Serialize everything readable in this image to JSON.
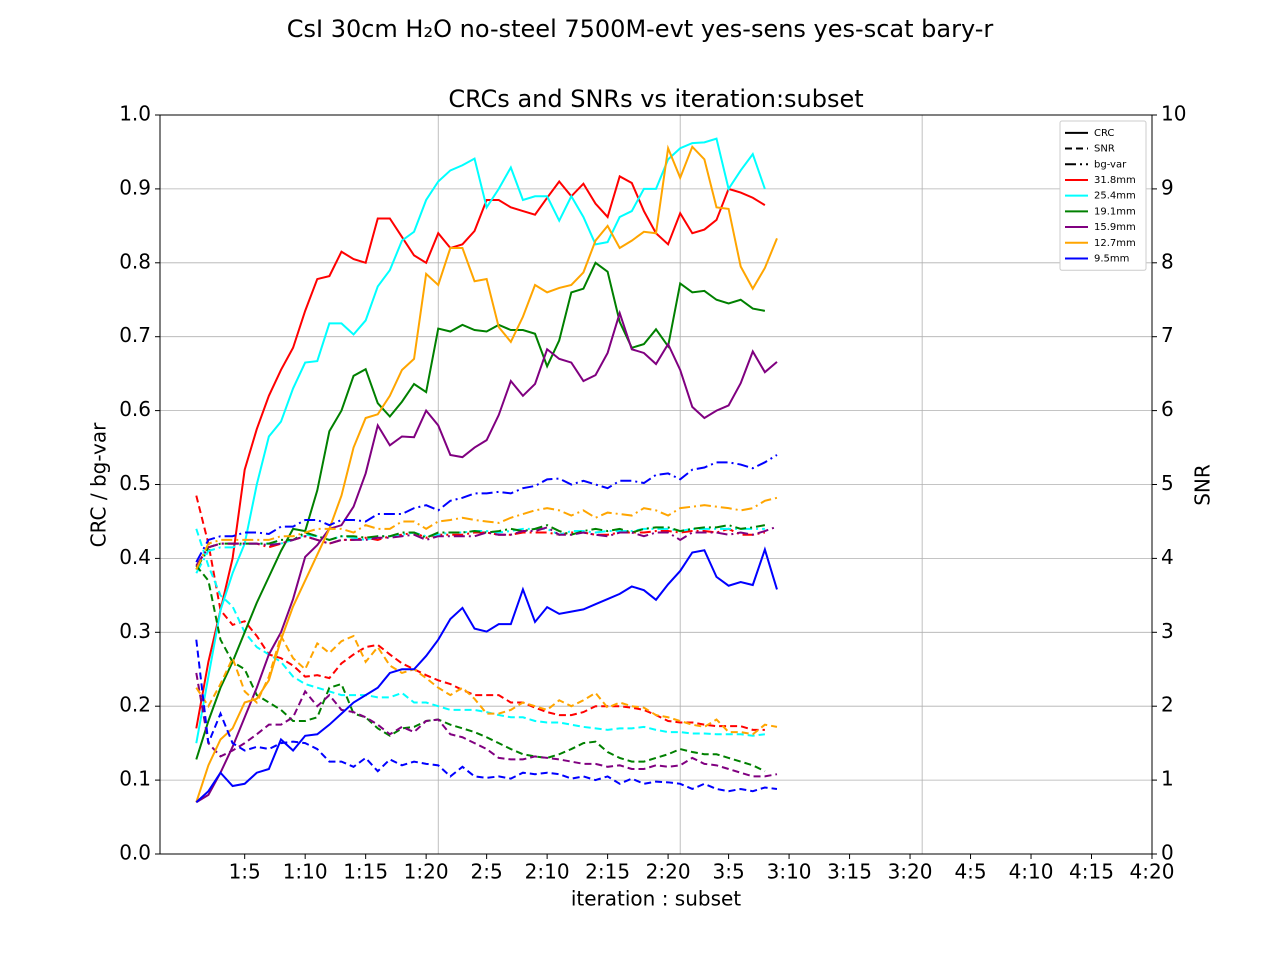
{
  "chart_data": {
    "type": "line",
    "title": "CsI 30cm H₂O no-steel 7500M-evt yes-sens yes-scat bary-r",
    "subtitle": "CRCs and SNRs vs iteration:subset",
    "x_label": "iteration : subset",
    "y_label": "CRC / bg-var",
    "y2_label": "SNR",
    "x": [
      0,
      1,
      2,
      3,
      4,
      5,
      6,
      7,
      8,
      9,
      10,
      11,
      12,
      13,
      14,
      15,
      16,
      17,
      18,
      19,
      20,
      21,
      22,
      23,
      24,
      25,
      26,
      27,
      28,
      29,
      30,
      31,
      32,
      33,
      34,
      35,
      36,
      37,
      38,
      39,
      40,
      41,
      42,
      43,
      44,
      45,
      46,
      47,
      48
    ],
    "xlim": [
      -3,
      79
    ],
    "xticks": [
      {
        "value": 4,
        "label": "1:5"
      },
      {
        "value": 9,
        "label": "1:10"
      },
      {
        "value": 14,
        "label": "1:15"
      },
      {
        "value": 19,
        "label": "1:20"
      },
      {
        "value": 24,
        "label": "2:5"
      },
      {
        "value": 29,
        "label": "2:10"
      },
      {
        "value": 34,
        "label": "2:15"
      },
      {
        "value": 39,
        "label": "2:20"
      },
      {
        "value": 44,
        "label": "3:5"
      },
      {
        "value": 49,
        "label": "3:10"
      },
      {
        "value": 54,
        "label": "3:15"
      },
      {
        "value": 59,
        "label": "3:20"
      },
      {
        "value": 64,
        "label": "4:5"
      },
      {
        "value": 69,
        "label": "4:10"
      },
      {
        "value": 74,
        "label": "4:15"
      },
      {
        "value": 79,
        "label": "4:20"
      }
    ],
    "xgrid": [
      20,
      40,
      60
    ],
    "ylim": [
      0,
      1
    ],
    "yticks": [
      {
        "value": 0,
        "label": "0.0"
      },
      0.1,
      0.2,
      0.3,
      0.4,
      0.5,
      0.6,
      0.7,
      0.8,
      0.9,
      {
        "value": 1,
        "label": "1.0"
      }
    ],
    "y2lim": [
      0,
      10
    ],
    "y2ticks": [
      0,
      1,
      2,
      3,
      4,
      5,
      6,
      7,
      8,
      9,
      10
    ],
    "grid": true,
    "legend": "upper right",
    "line_styles": [
      {
        "name": "CRC",
        "dash": "solid"
      },
      {
        "name": "SNR",
        "dash": "dashed"
      },
      {
        "name": "bg-var",
        "dash": "dashdot"
      }
    ],
    "series": [
      {
        "name": "31.8mm",
        "color": "#ff0000",
        "values": [
          0.17,
          0.26,
          0.33,
          0.4,
          0.52,
          0.575,
          0.62,
          0.655,
          0.685,
          0.735,
          0.778,
          0.782,
          0.815,
          0.805,
          0.8,
          0.86,
          0.86,
          0.835,
          0.81,
          0.8,
          0.84,
          0.82,
          0.825,
          0.843,
          0.885,
          0.885,
          0.875,
          0.87,
          0.865,
          0.888,
          0.91,
          0.89,
          0.907,
          0.88,
          0.862,
          0.917,
          0.908,
          0.87,
          0.84,
          0.825,
          0.867,
          0.84,
          0.845,
          0.858,
          0.9,
          0.895,
          0.888,
          0.878,
          null
        ],
        "snr": [
          4.85,
          4.2,
          3.3,
          3.1,
          3.15,
          2.95,
          2.7,
          2.65,
          2.55,
          2.4,
          2.42,
          2.38,
          2.58,
          2.7,
          2.8,
          2.83,
          2.7,
          2.58,
          2.5,
          2.42,
          2.35,
          2.3,
          2.22,
          2.15,
          2.15,
          2.15,
          2.05,
          2.05,
          1.98,
          1.92,
          1.88,
          1.88,
          1.92,
          2.0,
          2.0,
          2.0,
          1.98,
          1.95,
          1.88,
          1.8,
          1.78,
          1.78,
          1.75,
          1.73,
          1.73,
          1.73,
          1.68,
          1.68,
          null
        ],
        "bg_var": [
          0.39,
          0.415,
          0.42,
          0.42,
          0.42,
          0.42,
          0.415,
          0.42,
          0.425,
          0.43,
          0.425,
          0.42,
          0.425,
          0.425,
          0.428,
          0.425,
          0.43,
          0.432,
          0.435,
          0.428,
          0.432,
          0.432,
          0.432,
          0.435,
          0.435,
          0.432,
          0.432,
          0.435,
          0.435,
          0.435,
          0.432,
          0.435,
          0.435,
          0.432,
          0.432,
          0.435,
          0.435,
          0.435,
          0.437,
          0.437,
          0.435,
          0.437,
          0.437,
          0.435,
          0.44,
          0.432,
          0.432,
          0.435,
          null
        ]
      },
      {
        "name": "25.4mm",
        "color": "#00ffff",
        "values": [
          0.15,
          0.24,
          0.33,
          0.38,
          0.42,
          0.5,
          0.565,
          0.585,
          0.63,
          0.665,
          0.667,
          0.718,
          0.718,
          0.703,
          0.722,
          0.768,
          0.79,
          0.83,
          0.842,
          0.885,
          0.91,
          0.925,
          0.932,
          0.941,
          0.875,
          0.9,
          0.929,
          0.885,
          0.89,
          0.89,
          0.857,
          0.89,
          0.862,
          0.825,
          0.828,
          0.862,
          0.87,
          0.9,
          0.9,
          0.94,
          0.955,
          0.962,
          0.963,
          0.968,
          0.9,
          0.925,
          0.947,
          0.9,
          null
        ],
        "snr": [
          4.4,
          3.9,
          3.5,
          3.35,
          3.0,
          2.8,
          2.7,
          2.6,
          2.4,
          2.3,
          2.25,
          2.2,
          2.15,
          2.15,
          2.15,
          2.12,
          2.12,
          2.18,
          2.05,
          2.05,
          2.0,
          1.95,
          1.95,
          1.95,
          1.92,
          1.88,
          1.85,
          1.85,
          1.8,
          1.78,
          1.78,
          1.75,
          1.72,
          1.7,
          1.68,
          1.7,
          1.7,
          1.72,
          1.68,
          1.65,
          1.65,
          1.63,
          1.63,
          1.62,
          1.62,
          1.62,
          1.6,
          1.62,
          null
        ],
        "bg_var": [
          0.38,
          0.41,
          0.415,
          0.415,
          0.42,
          0.42,
          0.42,
          0.42,
          0.425,
          0.432,
          0.43,
          0.425,
          0.43,
          0.428,
          0.425,
          0.43,
          0.43,
          0.432,
          0.435,
          0.43,
          0.432,
          0.435,
          0.435,
          0.437,
          0.437,
          0.435,
          0.437,
          0.44,
          0.44,
          0.44,
          0.432,
          0.437,
          0.437,
          0.435,
          0.437,
          0.437,
          0.437,
          0.44,
          0.44,
          0.44,
          0.437,
          0.44,
          0.44,
          0.44,
          0.44,
          0.44,
          0.44,
          0.44,
          null
        ]
      },
      {
        "name": "19.1mm",
        "color": "#008000",
        "values": [
          0.128,
          0.18,
          0.225,
          0.26,
          0.3,
          0.34,
          0.375,
          0.41,
          0.44,
          0.437,
          0.492,
          0.572,
          0.6,
          0.647,
          0.656,
          0.61,
          0.592,
          0.612,
          0.636,
          0.625,
          0.711,
          0.707,
          0.716,
          0.709,
          0.707,
          0.716,
          0.709,
          0.709,
          0.704,
          0.66,
          0.695,
          0.76,
          0.765,
          0.8,
          0.788,
          0.72,
          0.685,
          0.69,
          0.71,
          0.687,
          0.772,
          0.76,
          0.762,
          0.75,
          0.745,
          0.75,
          0.738,
          0.735,
          null
        ],
        "snr": [
          3.9,
          3.7,
          2.9,
          2.6,
          2.5,
          2.15,
          2.05,
          1.95,
          1.8,
          1.8,
          1.85,
          2.25,
          2.3,
          1.9,
          1.85,
          1.7,
          1.6,
          1.7,
          1.72,
          1.8,
          1.82,
          1.75,
          1.7,
          1.65,
          1.58,
          1.5,
          1.42,
          1.35,
          1.32,
          1.3,
          1.35,
          1.42,
          1.5,
          1.52,
          1.38,
          1.3,
          1.25,
          1.25,
          1.3,
          1.35,
          1.42,
          1.38,
          1.35,
          1.35,
          1.3,
          1.25,
          1.2,
          1.12,
          null
        ],
        "bg_var": [
          0.385,
          0.415,
          0.42,
          0.42,
          0.42,
          0.42,
          0.42,
          0.425,
          0.425,
          0.435,
          0.43,
          0.425,
          0.43,
          0.43,
          0.428,
          0.43,
          0.43,
          0.435,
          0.435,
          0.428,
          0.435,
          0.435,
          0.435,
          0.437,
          0.435,
          0.437,
          0.44,
          0.437,
          0.44,
          0.445,
          0.437,
          0.432,
          0.437,
          0.44,
          0.437,
          0.44,
          0.435,
          0.44,
          0.442,
          0.442,
          0.437,
          0.44,
          0.442,
          0.442,
          0.445,
          0.44,
          0.442,
          0.445,
          null
        ]
      },
      {
        "name": "15.9mm",
        "color": "#800080",
        "values": [
          0.07,
          0.08,
          0.11,
          0.145,
          0.185,
          0.225,
          0.27,
          0.3,
          0.345,
          0.402,
          0.418,
          0.44,
          0.445,
          0.47,
          0.515,
          0.58,
          0.553,
          0.565,
          0.564,
          0.6,
          0.58,
          0.54,
          0.537,
          0.55,
          0.56,
          0.594,
          0.64,
          0.62,
          0.636,
          0.683,
          0.67,
          0.665,
          0.64,
          0.648,
          0.678,
          0.732,
          0.683,
          0.678,
          0.663,
          0.69,
          0.655,
          0.605,
          0.59,
          0.6,
          0.607,
          0.637,
          0.68,
          0.652,
          0.666
        ],
        "snr": [
          2.45,
          1.5,
          1.32,
          1.4,
          1.5,
          1.62,
          1.75,
          1.75,
          1.85,
          2.2,
          2.0,
          2.15,
          1.95,
          1.92,
          1.85,
          1.75,
          1.62,
          1.72,
          1.65,
          1.8,
          1.82,
          1.62,
          1.58,
          1.5,
          1.42,
          1.3,
          1.28,
          1.28,
          1.32,
          1.3,
          1.28,
          1.25,
          1.22,
          1.22,
          1.18,
          1.2,
          1.15,
          1.15,
          1.2,
          1.18,
          1.2,
          1.3,
          1.22,
          1.2,
          1.15,
          1.1,
          1.05,
          1.05,
          1.08
        ],
        "bg_var": [
          0.39,
          0.415,
          0.42,
          0.42,
          0.42,
          0.42,
          0.418,
          0.42,
          0.425,
          0.43,
          0.425,
          0.42,
          0.425,
          0.425,
          0.425,
          0.428,
          0.428,
          0.43,
          0.432,
          0.425,
          0.43,
          0.43,
          0.43,
          0.43,
          0.435,
          0.432,
          0.432,
          0.437,
          0.437,
          0.442,
          0.432,
          0.432,
          0.435,
          0.432,
          0.43,
          0.435,
          0.435,
          0.43,
          0.435,
          0.435,
          0.425,
          0.435,
          0.435,
          0.435,
          0.432,
          0.435,
          0.432,
          0.437,
          0.443
        ]
      },
      {
        "name": "12.7mm",
        "color": "#ffa500",
        "values": [
          0.07,
          0.12,
          0.155,
          0.17,
          0.205,
          0.21,
          0.235,
          0.29,
          0.335,
          0.37,
          0.405,
          0.44,
          0.485,
          0.55,
          0.59,
          0.595,
          0.62,
          0.655,
          0.67,
          0.785,
          0.77,
          0.82,
          0.82,
          0.775,
          0.778,
          0.713,
          0.693,
          0.727,
          0.77,
          0.76,
          0.766,
          0.77,
          0.787,
          0.83,
          0.85,
          0.82,
          0.83,
          0.842,
          0.84,
          0.955,
          0.915,
          0.957,
          0.94,
          0.875,
          0.873,
          0.795,
          0.765,
          0.793,
          0.833
        ],
        "snr": [
          2.25,
          2.0,
          2.3,
          2.65,
          2.2,
          2.05,
          2.4,
          2.95,
          2.65,
          2.5,
          2.85,
          2.72,
          2.88,
          2.95,
          2.6,
          2.8,
          2.55,
          2.45,
          2.5,
          2.38,
          2.25,
          2.15,
          2.25,
          2.1,
          1.9,
          1.9,
          1.95,
          2.05,
          2.0,
          1.95,
          2.08,
          2.0,
          2.08,
          2.18,
          1.98,
          2.05,
          2.0,
          1.98,
          1.88,
          1.85,
          1.8,
          1.75,
          1.72,
          1.82,
          1.65,
          1.65,
          1.62,
          1.75,
          1.72
        ],
        "bg_var": [
          0.385,
          0.42,
          0.425,
          0.425,
          0.425,
          0.425,
          0.425,
          0.43,
          0.43,
          0.435,
          0.44,
          0.44,
          0.44,
          0.435,
          0.445,
          0.44,
          0.44,
          0.45,
          0.45,
          0.44,
          0.45,
          0.452,
          0.455,
          0.452,
          0.45,
          0.448,
          0.455,
          0.46,
          0.465,
          0.468,
          0.465,
          0.458,
          0.465,
          0.455,
          0.462,
          0.46,
          0.458,
          0.468,
          0.465,
          0.458,
          0.468,
          0.47,
          0.472,
          0.47,
          0.468,
          0.465,
          0.468,
          0.478,
          0.482
        ]
      },
      {
        "name": "9.5mm",
        "color": "#0000ff",
        "values": [
          0.07,
          0.085,
          0.11,
          0.092,
          0.095,
          0.11,
          0.115,
          0.155,
          0.14,
          0.16,
          0.162,
          0.175,
          0.19,
          0.205,
          0.215,
          0.225,
          0.245,
          0.25,
          0.25,
          0.268,
          0.29,
          0.318,
          0.333,
          0.305,
          0.301,
          0.311,
          0.311,
          0.358,
          0.314,
          0.334,
          0.325,
          0.328,
          0.331,
          0.338,
          0.345,
          0.352,
          0.362,
          0.357,
          0.344,
          0.365,
          0.383,
          0.408,
          0.411,
          0.375,
          0.363,
          0.368,
          0.364,
          0.412,
          0.358
        ],
        "snr": [
          2.9,
          1.5,
          1.9,
          1.5,
          1.4,
          1.45,
          1.42,
          1.5,
          1.52,
          1.5,
          1.42,
          1.25,
          1.25,
          1.18,
          1.3,
          1.12,
          1.28,
          1.2,
          1.25,
          1.22,
          1.2,
          1.05,
          1.18,
          1.05,
          1.03,
          1.05,
          1.02,
          1.1,
          1.08,
          1.1,
          1.08,
          1.02,
          1.05,
          1.0,
          1.05,
          0.95,
          1.02,
          0.95,
          0.98,
          0.97,
          0.95,
          0.88,
          0.95,
          0.88,
          0.85,
          0.88,
          0.85,
          0.9,
          0.88
        ],
        "bg_var": [
          0.395,
          0.425,
          0.43,
          0.43,
          0.435,
          0.435,
          0.433,
          0.443,
          0.443,
          0.452,
          0.452,
          0.445,
          0.452,
          0.452,
          0.45,
          0.46,
          0.46,
          0.46,
          0.468,
          0.472,
          0.465,
          0.478,
          0.482,
          0.488,
          0.488,
          0.49,
          0.488,
          0.495,
          0.498,
          0.507,
          0.508,
          0.5,
          0.505,
          0.5,
          0.495,
          0.505,
          0.505,
          0.502,
          0.513,
          0.515,
          0.507,
          0.52,
          0.523,
          0.53,
          0.53,
          0.527,
          0.522,
          0.53,
          0.54
        ]
      }
    ]
  }
}
